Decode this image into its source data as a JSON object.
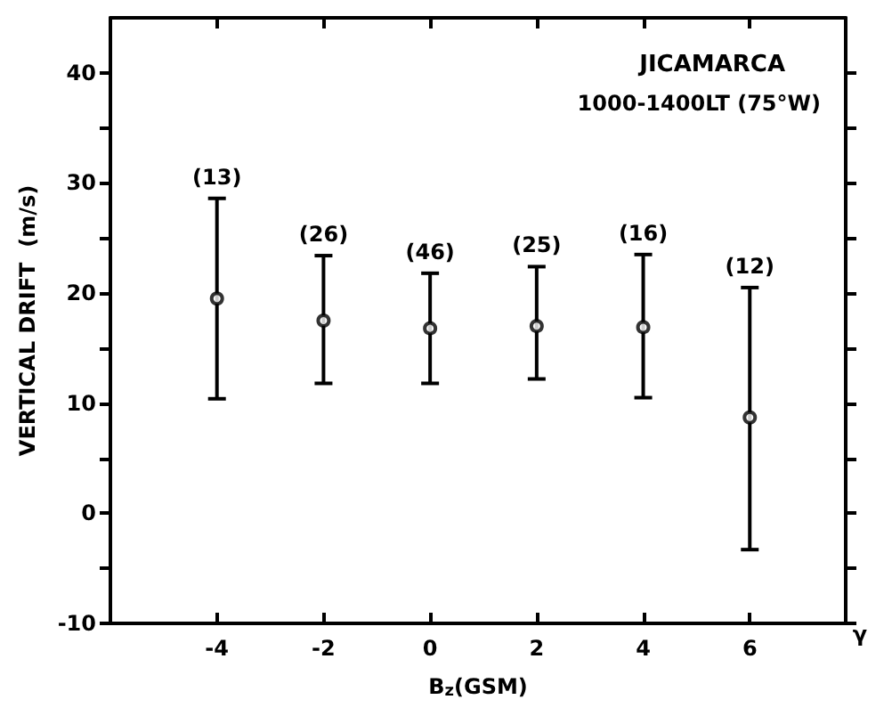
{
  "chart_data": {
    "type": "scatter",
    "title": "JICAMARCA",
    "subtitle": "1000-1400LT (75°W)",
    "xlabel": "B$_{z}$(GSM)",
    "ylabel": "VERTICAL DRIFT  (m/s)",
    "annotations": [
      "γ",
      {
        "text": "(13)",
        "x": -4,
        "y": 28.6
      },
      {
        "text": "(26)",
        "x": -2,
        "y": 23.4
      },
      {
        "text": "(46)",
        "x": 0,
        "y": 21.8
      },
      {
        "text": "(25)",
        "x": 2,
        "y": 22.4
      },
      {
        "text": "(16)",
        "x": 4,
        "y": 23.5
      },
      {
        "text": "(12)",
        "x": 6,
        "y": 20.5
      }
    ],
    "x": [
      -4,
      -2,
      0,
      2,
      4,
      6
    ],
    "values": [
      19.5,
      17.5,
      16.8,
      17.0,
      16.9,
      8.7
    ],
    "errors": [
      [
        10.4,
        28.6
      ],
      [
        11.8,
        23.4
      ],
      [
        11.8,
        21.8
      ],
      [
        12.2,
        22.4
      ],
      [
        10.5,
        23.5
      ],
      [
        -3.3,
        20.5
      ]
    ],
    "color": "#000000",
    "marker": "circle",
    "grid": false,
    "xlim": [
      -6,
      7.8
    ],
    "xticks": [
      -4,
      -2,
      0,
      2,
      4,
      6
    ],
    "ylim": [
      -10,
      45
    ],
    "yticks": [
      -10,
      {
        "value": -5,
        "label": null
      },
      0,
      {
        "value": 5,
        "label": null
      },
      10,
      {
        "value": 15,
        "label": null
      },
      20,
      {
        "value": 25,
        "label": null
      },
      30,
      {
        "value": 35,
        "label": null
      },
      40
    ]
  }
}
